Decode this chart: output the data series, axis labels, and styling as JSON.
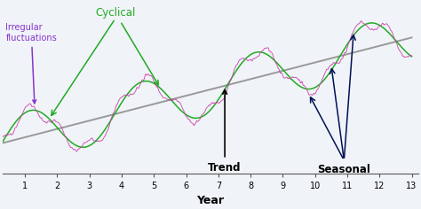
{
  "xlabel": "Year",
  "xlim": [
    0.3,
    13.2
  ],
  "ylim": [
    -0.9,
    2.8
  ],
  "xticks": [
    1,
    2,
    3,
    4,
    5,
    6,
    7,
    8,
    9,
    10,
    11,
    12,
    13
  ],
  "trend_color": "#999999",
  "cyclical_color": "#22aa22",
  "irregular_color": "#cc44aa",
  "background_color": "#f0f4f8",
  "trend_slope": 0.18,
  "trend_intercept": -0.3,
  "cyclical_amp": 0.55,
  "cyclical_period": 3.5,
  "cyclical_phase": -0.5,
  "irregular_amp": 0.14,
  "irregular_freq": 14,
  "irregular_phase": 0.3,
  "noise_amp": 0.06
}
